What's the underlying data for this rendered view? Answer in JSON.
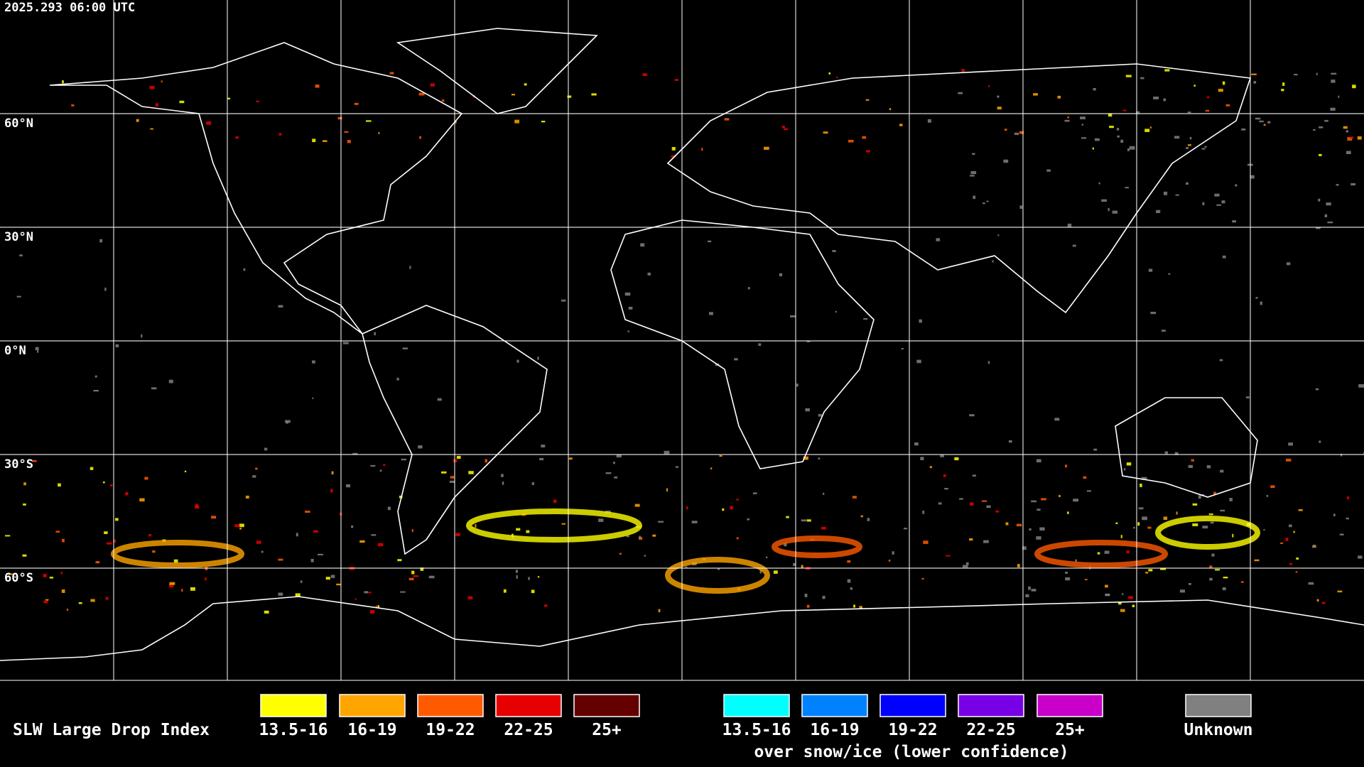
{
  "header": {
    "timestamp": "2025.293 06:00 UTC"
  },
  "map": {
    "lat_labels": [
      "60°N",
      "30°N",
      "0°N",
      "30°S",
      "60°S"
    ]
  },
  "legend": {
    "title": "SLW Large Drop Index",
    "items": [
      {
        "label": "13.5-16",
        "color": "#ffff00"
      },
      {
        "label": "16-19",
        "color": "#ffa500"
      },
      {
        "label": "19-22",
        "color": "#ff5a00"
      },
      {
        "label": "22-25",
        "color": "#e60000"
      },
      {
        "label": "25+",
        "color": "#640000"
      }
    ],
    "snow_items": [
      {
        "label": "13.5-16",
        "color": "#00ffff"
      },
      {
        "label": "16-19",
        "color": "#0082ff"
      },
      {
        "label": "19-22",
        "color": "#0000ff"
      },
      {
        "label": "22-25",
        "color": "#7800e6"
      },
      {
        "label": "25+",
        "color": "#c800c8"
      }
    ],
    "snow_caption": "over snow/ice (lower confidence)",
    "unknown": {
      "label": "Unknown",
      "color": "#808080"
    }
  }
}
